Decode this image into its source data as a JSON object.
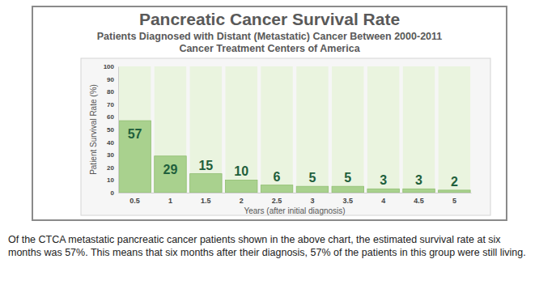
{
  "chart_data": {
    "type": "bar",
    "title": "Pancreatic Cancer Survival Rate",
    "subtitle": [
      "Patients Diagnosed with Distant (Metastatic) Cancer Between 2000-2011",
      "Cancer Treatment Centers of America"
    ],
    "x_label": "Years (after initial diagnosis)",
    "y_label": "Patient Survival Rate (%)",
    "categories": [
      "0.5",
      "1",
      "1.5",
      "2",
      "2.5",
      "3",
      "3.5",
      "4",
      "4.5",
      "5"
    ],
    "values": [
      57,
      29,
      15,
      10,
      6,
      5,
      5,
      3,
      3,
      2
    ],
    "color": "#a9d18e",
    "ylim": [
      0,
      100
    ],
    "yticks": [
      0,
      10,
      20,
      30,
      40,
      50,
      60,
      70,
      80,
      90,
      100
    ],
    "grid": false,
    "data_labels": true,
    "caption": "Of the CTCA metastatic pancreatic cancer patients shown in the above chart, the estimated survival rate at six months was 57%. This means that six months after their diagnosis, 57% of the patients in this group were still living."
  }
}
